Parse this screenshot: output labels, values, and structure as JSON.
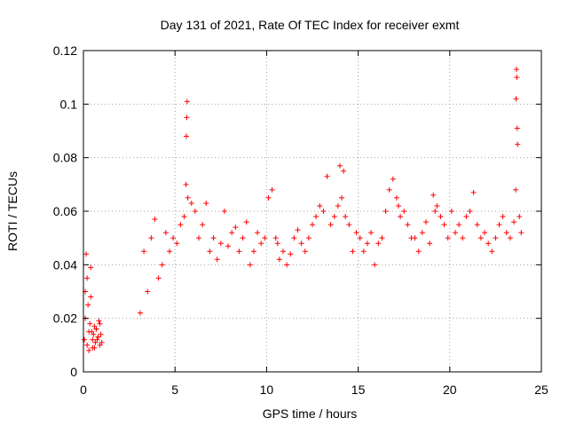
{
  "chart_data": {
    "type": "scatter",
    "title": "Day 131 of 2021, Rate Of TEC Index for receiver exmt",
    "xlabel": "GPS time / hours",
    "ylabel": "ROTI / TECUs",
    "xlim": [
      0,
      25
    ],
    "ylim": [
      0,
      0.12
    ],
    "x_ticks": [
      0,
      5,
      10,
      15,
      20,
      25
    ],
    "x_tick_labels": [
      "0",
      "5",
      "10",
      "15",
      "20",
      "25"
    ],
    "y_ticks": [
      0,
      0.02,
      0.04,
      0.06,
      0.08,
      0.1,
      0.12
    ],
    "y_tick_labels": [
      "0",
      "0.02",
      "0.04",
      "0.06",
      "0.08",
      "0.1",
      "0.12"
    ],
    "grid": true,
    "legend": "none",
    "marker": "+",
    "color": "#ff0000",
    "series": [
      {
        "x": [
          0.05,
          0.1,
          0.15,
          0.2,
          0.25,
          0.3,
          0.35,
          0.4,
          0.45,
          0.5,
          0.55,
          0.6,
          0.65,
          0.7,
          0.75,
          0.8,
          0.85,
          0.9,
          0.95,
          1.0,
          0.1,
          0.2,
          0.3,
          0.4,
          0.5,
          0.6,
          0.7,
          0.8,
          0.9,
          3.1,
          3.3,
          3.5,
          3.7,
          3.9,
          4.1,
          4.3,
          4.5,
          4.7,
          4.9,
          5.1,
          5.3,
          5.5,
          5.6,
          5.62,
          5.64,
          5.66,
          5.7,
          5.9,
          6.1,
          6.3,
          6.5,
          6.7,
          6.9,
          7.1,
          7.3,
          7.5,
          7.7,
          7.9,
          8.1,
          8.3,
          8.5,
          8.7,
          8.9,
          9.1,
          9.3,
          9.5,
          9.7,
          9.9,
          10.1,
          10.3,
          10.5,
          10.6,
          10.7,
          10.9,
          11.1,
          11.3,
          11.5,
          11.7,
          11.9,
          12.1,
          12.3,
          12.5,
          12.7,
          12.9,
          13.1,
          13.3,
          13.5,
          13.7,
          13.9,
          14.0,
          14.1,
          14.2,
          14.3,
          14.5,
          14.7,
          14.9,
          15.1,
          15.3,
          15.5,
          15.7,
          15.9,
          16.1,
          16.3,
          16.5,
          16.7,
          16.9,
          17.1,
          17.2,
          17.3,
          17.5,
          17.7,
          17.9,
          18.1,
          18.3,
          18.5,
          18.7,
          18.9,
          19.1,
          19.2,
          19.3,
          19.5,
          19.7,
          19.9,
          20.1,
          20.3,
          20.5,
          20.7,
          20.9,
          21.1,
          21.3,
          21.5,
          21.7,
          21.9,
          22.1,
          22.3,
          22.5,
          22.7,
          22.9,
          23.1,
          23.3,
          23.5,
          23.6,
          23.62,
          23.64,
          23.66,
          23.68,
          23.7,
          23.8,
          23.9
        ],
        "y": [
          0.012,
          0.03,
          0.044,
          0.01,
          0.025,
          0.008,
          0.018,
          0.039,
          0.015,
          0.009,
          0.014,
          0.017,
          0.011,
          0.016,
          0.012,
          0.013,
          0.019,
          0.01,
          0.014,
          0.011,
          0.02,
          0.035,
          0.015,
          0.028,
          0.012,
          0.009,
          0.016,
          0.013,
          0.018,
          0.022,
          0.045,
          0.03,
          0.05,
          0.057,
          0.035,
          0.04,
          0.052,
          0.045,
          0.05,
          0.048,
          0.055,
          0.058,
          0.07,
          0.088,
          0.095,
          0.101,
          0.065,
          0.063,
          0.06,
          0.05,
          0.055,
          0.063,
          0.045,
          0.05,
          0.042,
          0.048,
          0.06,
          0.047,
          0.052,
          0.054,
          0.045,
          0.05,
          0.056,
          0.04,
          0.045,
          0.052,
          0.048,
          0.05,
          0.065,
          0.068,
          0.05,
          0.048,
          0.042,
          0.045,
          0.04,
          0.044,
          0.05,
          0.053,
          0.048,
          0.045,
          0.05,
          0.055,
          0.058,
          0.062,
          0.06,
          0.073,
          0.055,
          0.058,
          0.062,
          0.077,
          0.065,
          0.075,
          0.058,
          0.055,
          0.045,
          0.052,
          0.05,
          0.045,
          0.048,
          0.052,
          0.04,
          0.048,
          0.05,
          0.06,
          0.068,
          0.072,
          0.065,
          0.062,
          0.058,
          0.06,
          0.055,
          0.05,
          0.05,
          0.045,
          0.052,
          0.056,
          0.048,
          0.066,
          0.06,
          0.062,
          0.058,
          0.055,
          0.05,
          0.06,
          0.052,
          0.055,
          0.05,
          0.058,
          0.06,
          0.067,
          0.055,
          0.05,
          0.052,
          0.048,
          0.045,
          0.05,
          0.055,
          0.058,
          0.052,
          0.05,
          0.056,
          0.068,
          0.102,
          0.113,
          0.11,
          0.091,
          0.085,
          0.058,
          0.052
        ]
      }
    ]
  }
}
